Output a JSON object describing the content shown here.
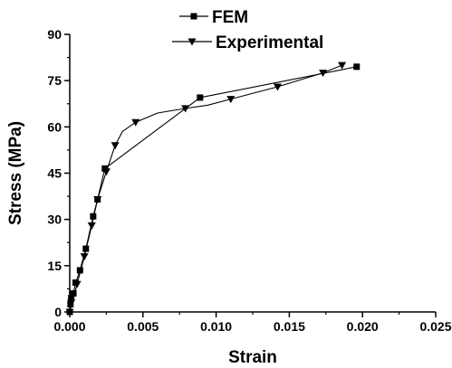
{
  "chart_data": {
    "type": "line",
    "xlabel": "Strain",
    "ylabel": "Stress (MPa)",
    "xlim": [
      0,
      0.025
    ],
    "ylim": [
      0,
      90
    ],
    "x_ticks": [
      "0.000",
      "0.005",
      "0.010",
      "0.015",
      "0.020",
      "0.025"
    ],
    "y_ticks": [
      "0",
      "15",
      "30",
      "45",
      "60",
      "75",
      "90"
    ],
    "grid": false,
    "legend_position": "top-center",
    "series": [
      {
        "name": "FEM",
        "marker": "square",
        "color": "#000000",
        "points": [
          [
            0.0,
            0.0
          ],
          [
            5e-05,
            2.5
          ],
          [
            0.0001,
            4.5
          ],
          [
            0.00025,
            6.0
          ],
          [
            0.0004,
            9.5
          ],
          [
            0.0007,
            13.5
          ],
          [
            0.0011,
            20.5
          ],
          [
            0.0016,
            31.0
          ],
          [
            0.0019,
            36.5
          ],
          [
            0.0024,
            46.5
          ],
          [
            0.0089,
            69.5
          ],
          [
            0.0196,
            79.5
          ]
        ]
      },
      {
        "name": "Experimental",
        "marker": "triangle-down",
        "color": "#000000",
        "points": [
          [
            0.0,
            0.0
          ],
          [
            0.0001,
            3.0
          ],
          [
            0.0002,
            5.5
          ],
          [
            0.0005,
            9.0
          ],
          [
            0.001,
            18.0
          ],
          [
            0.0015,
            28.0
          ],
          [
            0.0019,
            36.5
          ],
          [
            0.0025,
            45.5
          ],
          [
            0.0031,
            54.0
          ],
          [
            0.0045,
            61.5
          ],
          [
            0.0079,
            66.0
          ],
          [
            0.011,
            69.0
          ],
          [
            0.0142,
            73.0
          ],
          [
            0.0173,
            77.5
          ],
          [
            0.0186,
            80.0
          ]
        ],
        "curve_points": [
          [
            0.0,
            0.0
          ],
          [
            0.0005,
            9.0
          ],
          [
            0.001,
            18.0
          ],
          [
            0.0015,
            28.0
          ],
          [
            0.0019,
            36.5
          ],
          [
            0.0025,
            45.5
          ],
          [
            0.0031,
            54.0
          ],
          [
            0.0036,
            58.5
          ],
          [
            0.0045,
            61.5
          ],
          [
            0.006,
            64.5
          ],
          [
            0.0079,
            66.0
          ],
          [
            0.0094,
            67.0
          ],
          [
            0.011,
            69.0
          ],
          [
            0.0142,
            73.0
          ],
          [
            0.0173,
            77.5
          ],
          [
            0.0186,
            80.0
          ]
        ]
      }
    ]
  }
}
